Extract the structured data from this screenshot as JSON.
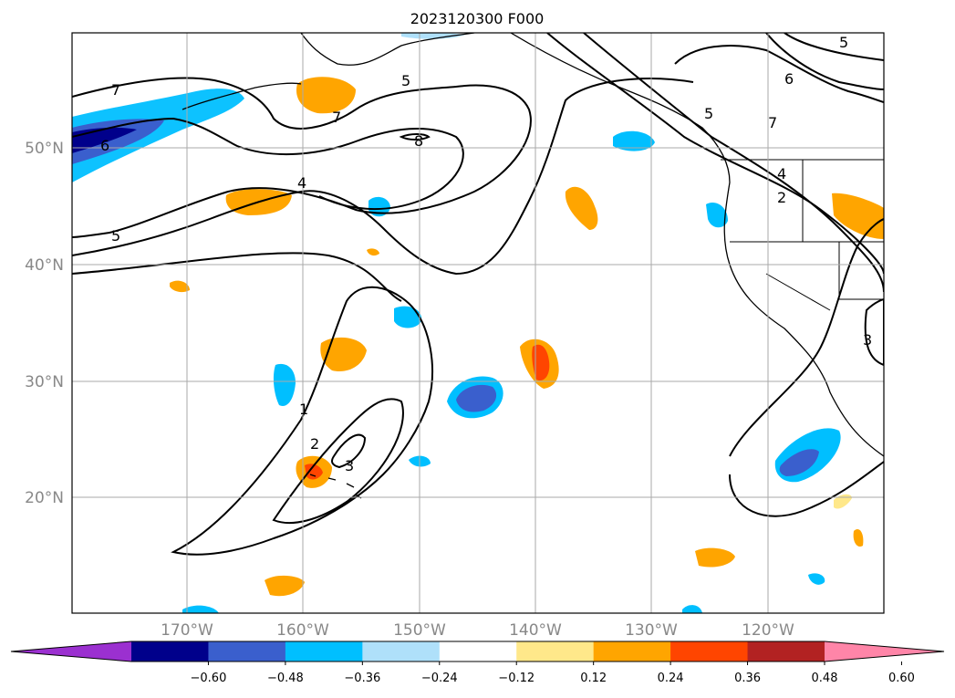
{
  "title": "2023120300 F000",
  "map": {
    "lat_labels": [
      "50°N",
      "40°N",
      "30°N",
      "20°N"
    ],
    "lon_labels": [
      "170°W",
      "160°W",
      "150°W",
      "140°W",
      "130°W",
      "120°W"
    ],
    "contour_labels": [
      "7",
      "5",
      "6",
      "5",
      "7",
      "4",
      "8",
      "5",
      "5",
      "6",
      "7",
      "4",
      "2",
      "1",
      "2",
      "3",
      "3"
    ]
  },
  "colorbar": {
    "ticks": [
      "−0.60",
      "−0.48",
      "−0.36",
      "−0.24",
      "−0.12",
      "0.12",
      "0.24",
      "0.36",
      "0.48",
      "0.60"
    ],
    "colors": [
      "#9b30d0",
      "#00008b",
      "#3a5fcd",
      "#00bfff",
      "#afe0fa",
      "#ffffff",
      "#ffe88a",
      "#ffa500",
      "#ff4500",
      "#b22222",
      "#ff85a8"
    ]
  }
}
